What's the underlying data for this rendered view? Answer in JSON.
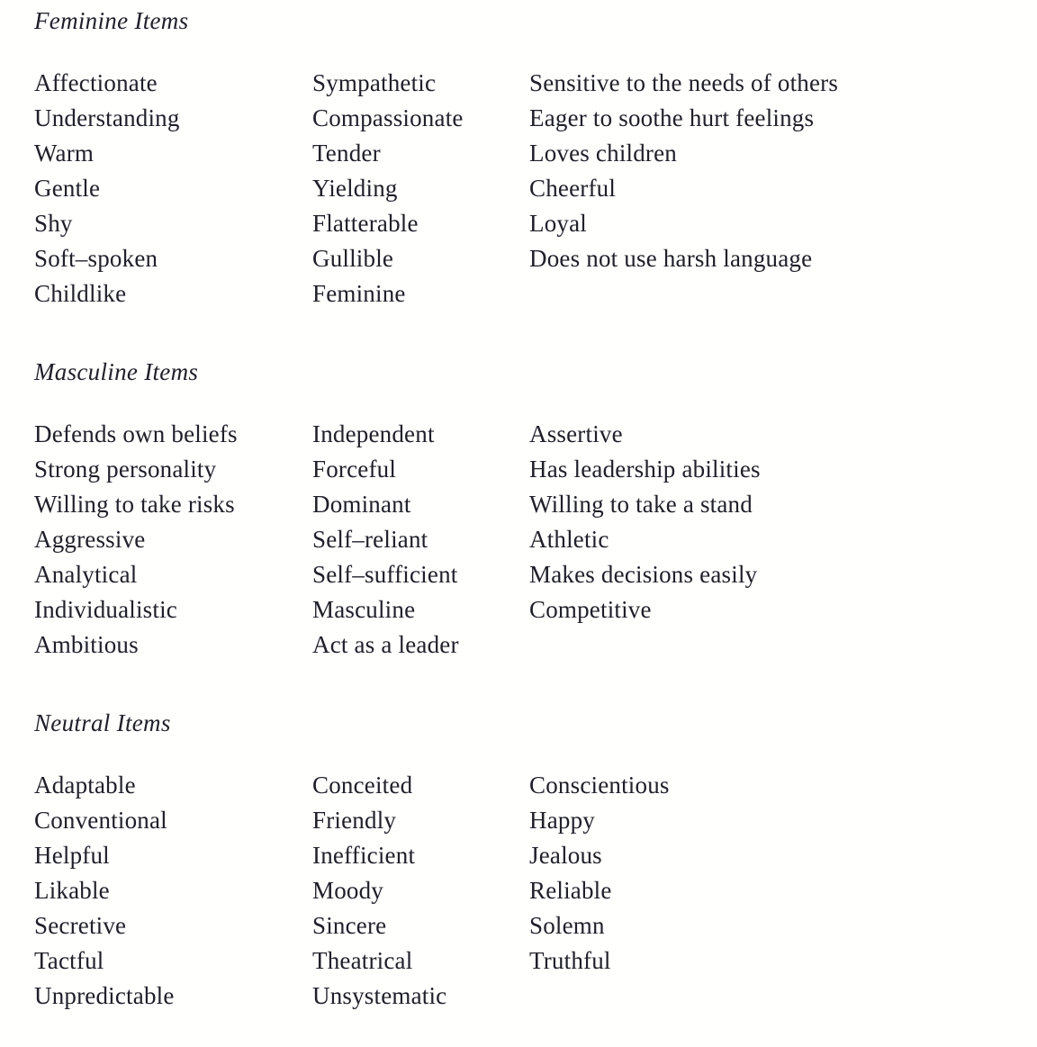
{
  "page": {
    "background_color": "#fffffe",
    "text_color": "#20202a"
  },
  "sections": [
    {
      "id": "feminine",
      "heading": "Feminine Items",
      "columns": [
        [
          "Affectionate",
          "Understanding",
          "Warm",
          "Gentle",
          "Shy",
          "Soft–spoken",
          "Childlike"
        ],
        [
          "Sympathetic",
          "Compassionate",
          "Tender",
          "Yielding",
          "Flatterable",
          "Gullible",
          "Feminine"
        ],
        [
          "Sensitive to the needs of others",
          "Eager to soothe hurt feelings",
          "Loves children",
          "Cheerful",
          "Loyal",
          "Does not use harsh language"
        ]
      ]
    },
    {
      "id": "masculine",
      "heading": "Masculine Items",
      "columns": [
        [
          "Defends own beliefs",
          "Strong personality",
          "Willing to take risks",
          "Aggressive",
          "Analytical",
          "Individualistic",
          "Ambitious"
        ],
        [
          "Independent",
          "Forceful",
          "Dominant",
          "Self–reliant",
          "Self–sufficient",
          "Masculine",
          "Act as a leader"
        ],
        [
          "Assertive",
          "Has leadership abilities",
          "Willing to take a stand",
          "Athletic",
          "Makes decisions easily",
          "Competitive"
        ]
      ]
    },
    {
      "id": "neutral",
      "heading": "Neutral Items",
      "columns": [
        [
          "Adaptable",
          "Conventional",
          "Helpful",
          "Likable",
          "Secretive",
          "Tactful",
          "Unpredictable"
        ],
        [
          "Conceited",
          "Friendly",
          "Inefficient",
          "Moody",
          "Sincere",
          "Theatrical",
          "Unsystematic"
        ],
        [
          "Conscientious",
          "Happy",
          "Jealous",
          "Reliable",
          "Solemn",
          "Truthful"
        ]
      ]
    }
  ]
}
